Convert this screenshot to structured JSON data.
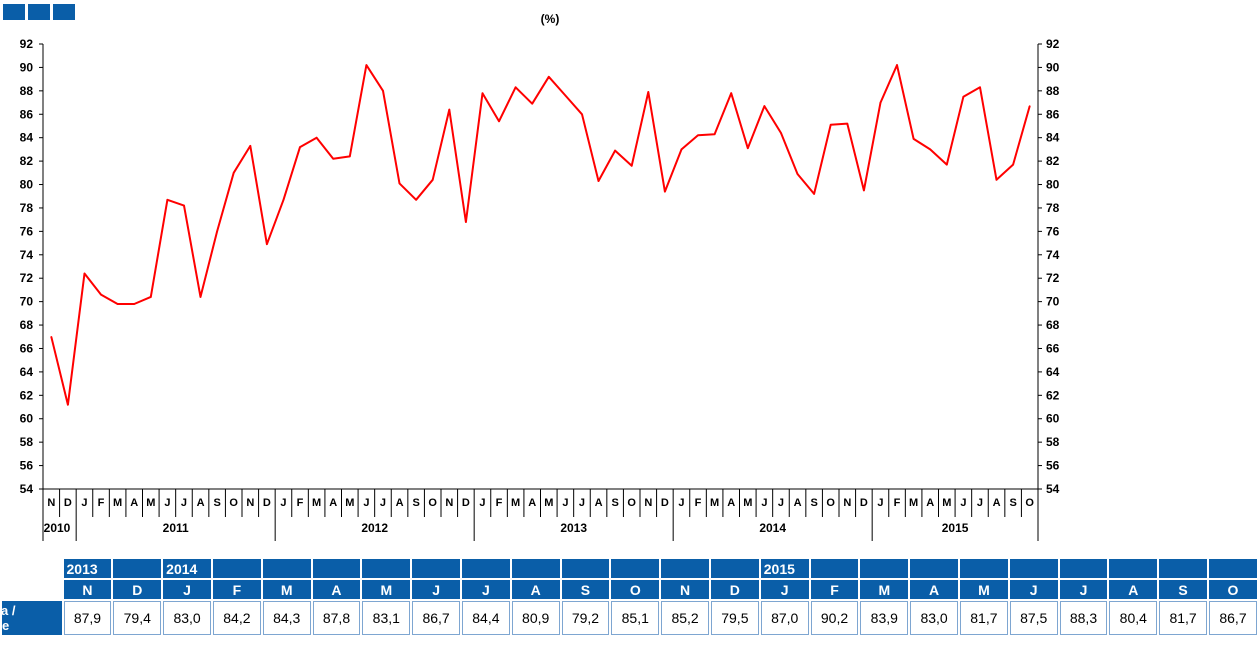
{
  "chart_data": {
    "type": "line",
    "title": "(%)",
    "xlabel": "",
    "ylabel": "",
    "ylim": [
      54,
      92
    ],
    "yticks": [
      54,
      56,
      58,
      60,
      62,
      64,
      66,
      68,
      70,
      72,
      74,
      76,
      78,
      80,
      82,
      84,
      86,
      88,
      90,
      92
    ],
    "line_color": "#ff0000",
    "x_month_labels": [
      "N",
      "D",
      "J",
      "F",
      "M",
      "A",
      "M",
      "J",
      "J",
      "A",
      "S",
      "O",
      "N",
      "D",
      "J",
      "F",
      "M",
      "A",
      "M",
      "J",
      "J",
      "A",
      "S",
      "O",
      "N",
      "D",
      "J",
      "F",
      "M",
      "A",
      "M",
      "J",
      "J",
      "A",
      "S",
      "O",
      "N",
      "D",
      "J",
      "F",
      "M",
      "A",
      "M",
      "J",
      "J",
      "A",
      "S",
      "O",
      "N",
      "D",
      "J",
      "F",
      "M",
      "A",
      "M",
      "J",
      "J",
      "A",
      "S",
      "O"
    ],
    "x_year_labels": [
      {
        "year": "2010",
        "start": 0,
        "end": 1
      },
      {
        "year": "2011",
        "start": 2,
        "end": 13
      },
      {
        "year": "2012",
        "start": 14,
        "end": 25
      },
      {
        "year": "2013",
        "start": 26,
        "end": 37
      },
      {
        "year": "2014",
        "start": 38,
        "end": 49
      },
      {
        "year": "2015",
        "start": 50,
        "end": 59
      }
    ],
    "values": [
      67.0,
      61.2,
      72.4,
      70.6,
      69.8,
      69.8,
      70.4,
      78.7,
      78.2,
      70.4,
      76.0,
      81.0,
      83.3,
      74.9,
      78.7,
      83.2,
      84.0,
      82.2,
      82.4,
      90.2,
      88.0,
      80.1,
      78.7,
      80.4,
      86.4,
      76.8,
      87.8,
      85.4,
      88.3,
      86.9,
      89.2,
      87.6,
      86.0,
      80.3,
      82.9,
      81.6,
      87.9,
      79.4,
      83.0,
      84.2,
      84.3,
      87.8,
      83.1,
      86.7,
      84.4,
      80.9,
      79.2,
      85.1,
      85.2,
      79.5,
      87.0,
      90.2,
      83.9,
      83.0,
      81.7,
      87.5,
      88.3,
      80.4,
      81.7,
      86.7
    ]
  },
  "table": {
    "row_label": "ura /\ne",
    "years": [
      "2013",
      "",
      "2014",
      "",
      "",
      "",
      "",
      "",
      "",
      "",
      "",
      "",
      "",
      "",
      "2015",
      "",
      "",
      "",
      "",
      "",
      "",
      "",
      "",
      ""
    ],
    "months": [
      "N",
      "D",
      "J",
      "F",
      "M",
      "A",
      "M",
      "J",
      "J",
      "A",
      "S",
      "O",
      "N",
      "D",
      "J",
      "F",
      "M",
      "A",
      "M",
      "J",
      "J",
      "A",
      "S",
      "O"
    ],
    "values": [
      "87,9",
      "79,4",
      "83,0",
      "84,2",
      "84,3",
      "87,8",
      "83,1",
      "86,7",
      "84,4",
      "80,9",
      "79,2",
      "85,1",
      "85,2",
      "79,5",
      "87,0",
      "90,2",
      "83,9",
      "83,0",
      "81,7",
      "87,5",
      "88,3",
      "80,4",
      "81,7",
      "86,7"
    ]
  },
  "colors": {
    "header_blue": "#0a5ea8",
    "line_red": "#ff0000",
    "cell_border": "#7ea6d1"
  }
}
